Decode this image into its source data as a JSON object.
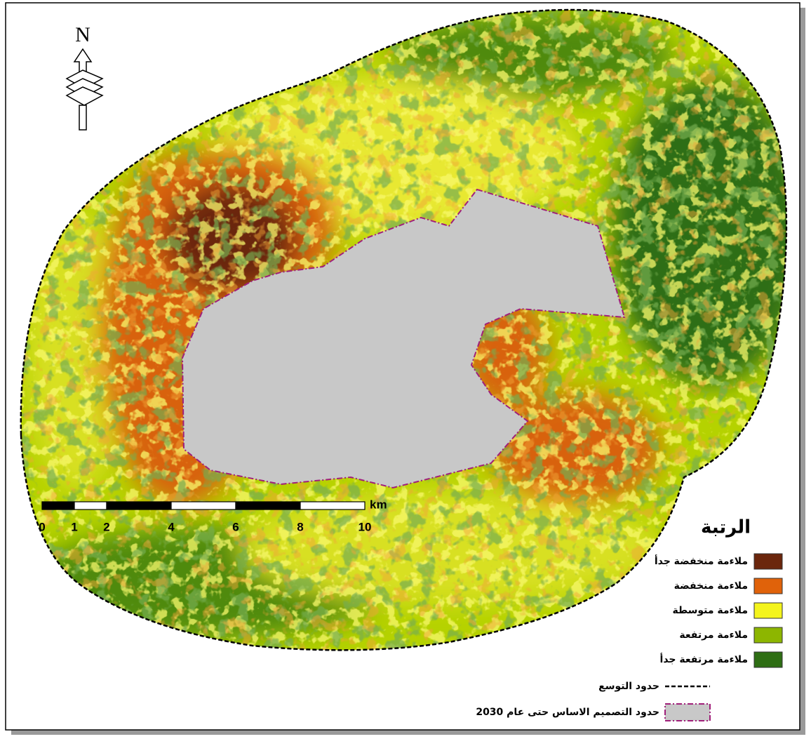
{
  "north": "N",
  "legend": {
    "title": "الرتبة",
    "items": [
      {
        "label": "ملاءمة منخفضة جدأ",
        "color": "#6b260c"
      },
      {
        "label": "ملاءمة منخفضة",
        "color": "#e0620a"
      },
      {
        "label": "ملاءمة متوسطة",
        "color": "#f4f41c"
      },
      {
        "label": "ملاءمة مرتفعة",
        "color": "#8db600"
      },
      {
        "label": "ملاءمة مرتفعة جدأ",
        "color": "#2e6e14"
      }
    ],
    "expansion_boundary": "حدود التوسع",
    "masterplan_boundary": "حدود التصميم الاساس حتى عام 2030"
  },
  "scale_bar": {
    "unit": "km",
    "ticks": [
      0,
      1,
      2,
      4,
      6,
      8,
      10
    ]
  }
}
